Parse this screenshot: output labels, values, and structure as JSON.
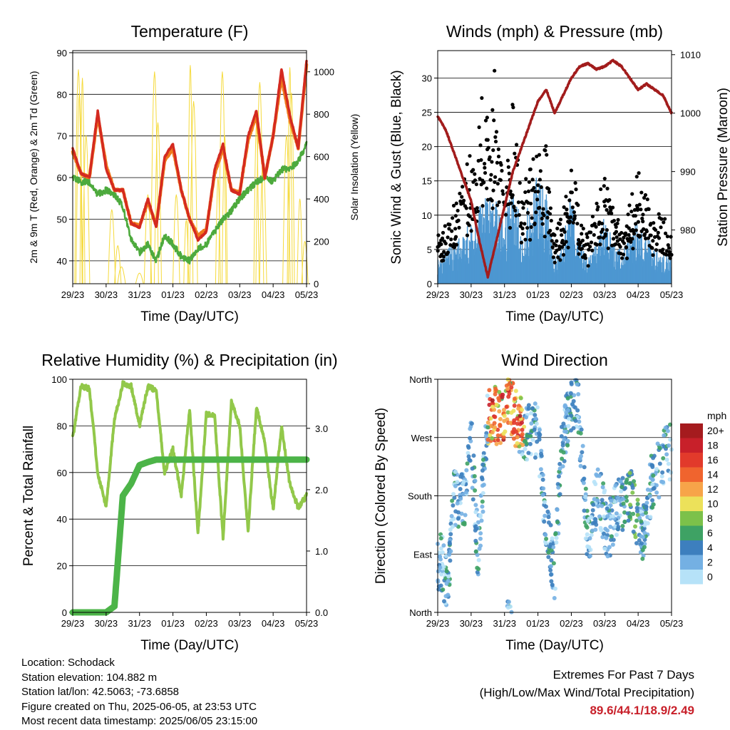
{
  "panels": {
    "temperature": {
      "title": "Temperature (F)",
      "ylabel_left": "2m & 9m T (Red, Orange) & 2m Td (Green)",
      "ylabel_right": "Solar Insolation (Yellow)",
      "xlabel": "Time (Day/UTC)"
    },
    "winds": {
      "title": "Winds (mph) & Pressure (mb)",
      "ylabel_left": "Sonic Wind & Gust (Blue, Black)",
      "ylabel_right": "Station Pressure (Maroon)",
      "xlabel": "Time (Day/UTC)"
    },
    "humidity": {
      "title": "Relative Humidity (%) & Precipitation (in)",
      "ylabel_left": "Percent & Total Rainfall",
      "xlabel": "Time (Day/UTC)"
    },
    "direction": {
      "title": "Wind Direction",
      "ylabel_left": "Direction (Colored By Speed)",
      "xlabel": "Time (Day/UTC)"
    }
  },
  "x_ticks": [
    "29/23",
    "30/23",
    "31/23",
    "01/23",
    "02/23",
    "03/23",
    "04/23",
    "05/23"
  ],
  "colorbar": {
    "unit": "mph",
    "labels": [
      "20+",
      "18",
      "16",
      "14",
      "12",
      "10",
      "8",
      "6",
      "4",
      "2",
      "0"
    ],
    "colors": [
      "#a51b1e",
      "#c8202a",
      "#e23a2b",
      "#f0642e",
      "#f7a449",
      "#ece15a",
      "#7cc14a",
      "#3ea264",
      "#3d7fbe",
      "#74b0e3",
      "#b6e2f8"
    ]
  },
  "info": {
    "location": "Location: Schodack",
    "elevation": "Station elevation: 104.882 m",
    "latlon": "Station lat/lon: 42.5063; -73.6858",
    "created": "Figure created on Thu, 2025-06-05, at 23:53 UTC",
    "recent": "Most recent data timestamp: 2025/06/05 23:15:00"
  },
  "extremes": {
    "title": "Extremes For Past 7 Days",
    "subtitle": "(High/Low/Max Wind/Total Precipitation)",
    "values": "89.6/44.1/18.9/2.49"
  },
  "chart_data": [
    {
      "type": "line",
      "title": "Temperature (F)",
      "xlabel": "Time (Day/UTC)",
      "ylabel": "2m & 9m T (Red, Orange) & 2m Td (Green)",
      "y2label": "Solar Insolation (Yellow)",
      "x_tick_labels": [
        "29/23",
        "30/23",
        "31/23",
        "01/23",
        "02/23",
        "03/23",
        "04/23",
        "05/23"
      ],
      "ylim": [
        34.5,
        90.5
      ],
      "y_ticks": [
        40,
        50,
        60,
        70,
        80,
        90
      ],
      "y2lim": [
        0,
        1100
      ],
      "y2_ticks": [
        0,
        200,
        400,
        600,
        800,
        1000
      ],
      "x": [
        0,
        0.25,
        0.5,
        0.75,
        1.0,
        1.25,
        1.5,
        1.75,
        2.0,
        2.25,
        2.5,
        2.75,
        3.0,
        3.25,
        3.5,
        3.75,
        4.0,
        4.25,
        4.5,
        4.75,
        5.0,
        5.25,
        5.5,
        5.75,
        6.0,
        6.25,
        6.5,
        6.75,
        7.0
      ],
      "series": [
        {
          "name": "2m T (Red)",
          "color": "#d42a20",
          "values": [
            67,
            61,
            60,
            76,
            62,
            57,
            57,
            49,
            48,
            55,
            48,
            65,
            68,
            57,
            50,
            45,
            47,
            62,
            68,
            57,
            56,
            70,
            76,
            60,
            70,
            86,
            75,
            67,
            88
          ]
        },
        {
          "name": "9m T (Orange)",
          "color": "#f07a1c",
          "values": [
            66,
            61,
            60,
            75,
            63,
            57,
            57,
            49,
            48.5,
            54,
            48.5,
            64,
            67,
            57,
            50,
            46,
            47.5,
            61,
            67,
            57,
            56.5,
            69,
            75,
            60,
            70,
            84,
            74,
            67,
            87
          ]
        },
        {
          "name": "2m Td (Green)",
          "color": "#4daa3d",
          "values": [
            60,
            59,
            59,
            56,
            57,
            56,
            53,
            45,
            42,
            44,
            40,
            46,
            44,
            41,
            40,
            43,
            44,
            47,
            50,
            52,
            55,
            57,
            59,
            60,
            59,
            62,
            62,
            64,
            68
          ]
        },
        {
          "name": "Solar Insolation (Yellow)",
          "color": "#f5da3c",
          "axis": "right",
          "values": [
            0,
            0,
            1020,
            0,
            0,
            350,
            50,
            0,
            0,
            0,
            900,
            0,
            0,
            0,
            1000,
            0,
            0,
            0,
            1000,
            0,
            0,
            0,
            950,
            0,
            0,
            0,
            1020,
            0,
            0
          ]
        }
      ]
    },
    {
      "type": "scatter",
      "title": "Winds (mph) & Pressure (mb)",
      "xlabel": "Time (Day/UTC)",
      "ylabel": "Sonic Wind & Gust (Blue, Black)",
      "y2label": "Station Pressure (Maroon)",
      "x_tick_labels": [
        "29/23",
        "30/23",
        "31/23",
        "01/23",
        "02/23",
        "03/23",
        "04/23",
        "05/23"
      ],
      "ylim": [
        0,
        34
      ],
      "y_ticks": [
        0,
        5,
        10,
        15,
        20,
        25,
        30
      ],
      "y2lim": [
        970.8,
        1010.7
      ],
      "y2_ticks": [
        980,
        990,
        1000,
        1010
      ],
      "x": [
        0,
        0.25,
        0.5,
        0.75,
        1.0,
        1.25,
        1.5,
        1.75,
        2.0,
        2.25,
        2.5,
        2.75,
        3.0,
        3.25,
        3.5,
        3.75,
        4.0,
        4.25,
        4.5,
        4.75,
        5.0,
        5.25,
        5.5,
        5.75,
        6.0,
        6.25,
        6.5,
        6.75,
        7.0
      ],
      "series": [
        {
          "name": "Sonic Wind (Blue)",
          "color": "#4d97d1",
          "values": [
            3,
            4,
            5,
            6,
            8,
            9,
            12,
            10,
            8,
            12,
            7,
            10,
            13,
            11,
            3,
            5,
            11,
            6,
            3,
            5,
            8,
            5,
            4,
            6,
            8,
            6,
            4,
            4,
            3
          ]
        },
        {
          "name": "Gust (Black)",
          "color": "#000000",
          "values": [
            6,
            8,
            10,
            12,
            17,
            21,
            30,
            25,
            13,
            24,
            11,
            15,
            16,
            17,
            6,
            9,
            16,
            10,
            6,
            10,
            14,
            10,
            7,
            10,
            14,
            11,
            8,
            9,
            6
          ]
        },
        {
          "name": "Station Pressure (Maroon)",
          "color": "#a21c1c",
          "axis": "right",
          "values": [
            999.5,
            997,
            993,
            989,
            985,
            978,
            972,
            978,
            984,
            990,
            994,
            998,
            1002,
            1004,
            1000,
            1003,
            1006,
            1008,
            1008.5,
            1007.5,
            1008,
            1009,
            1008,
            1006,
            1004,
            1005,
            1004,
            1003,
            1000
          ]
        }
      ]
    },
    {
      "type": "line",
      "title": "Relative Humidity (%) & Precipitation (in)",
      "xlabel": "Time (Day/UTC)",
      "ylabel": "Percent & Total Rainfall",
      "x_tick_labels": [
        "29/23",
        "30/23",
        "31/23",
        "01/23",
        "02/23",
        "03/23",
        "04/23",
        "05/23"
      ],
      "ylim": [
        0,
        100
      ],
      "y_ticks": [
        0,
        20,
        40,
        60,
        80,
        100
      ],
      "y2lim": [
        0,
        3.8
      ],
      "y2_ticks": [
        0.0,
        1.0,
        2.0,
        3.0
      ],
      "x": [
        0,
        0.25,
        0.5,
        0.75,
        1.0,
        1.25,
        1.5,
        1.75,
        2.0,
        2.25,
        2.5,
        2.75,
        3.0,
        3.25,
        3.5,
        3.75,
        4.0,
        4.25,
        4.5,
        4.75,
        5.0,
        5.25,
        5.5,
        5.75,
        6.0,
        6.25,
        6.5,
        6.75,
        7.0
      ],
      "series": [
        {
          "name": "Relative Humidity",
          "color": "#92c84a",
          "values": [
            75,
            97,
            96,
            60,
            45,
            83,
            98,
            97,
            80,
            97,
            95,
            60,
            70,
            50,
            87,
            34,
            85,
            84,
            32,
            90,
            80,
            35,
            88,
            73,
            44,
            80,
            55,
            45,
            50
          ]
        },
        {
          "name": "Total Precipitation",
          "color": "#4cb448",
          "axis": "right",
          "values": [
            0,
            0,
            0,
            0,
            0,
            0.1,
            1.9,
            2.1,
            2.4,
            2.45,
            2.49,
            2.49,
            2.49,
            2.49,
            2.49,
            2.49,
            2.49,
            2.49,
            2.49,
            2.49,
            2.49,
            2.49,
            2.49,
            2.49,
            2.49,
            2.49,
            2.49,
            2.49,
            2.49
          ]
        }
      ]
    },
    {
      "type": "scatter",
      "title": "Wind Direction",
      "xlabel": "Time (Day/UTC)",
      "ylabel": "Direction (Colored By Speed)",
      "x_tick_labels": [
        "29/23",
        "30/23",
        "31/23",
        "01/23",
        "02/23",
        "03/23",
        "04/23",
        "05/23"
      ],
      "y_tick_labels": [
        "North",
        "West",
        "South",
        "East",
        "North"
      ],
      "ylim": [
        0,
        360
      ],
      "colorbar": {
        "label": "mph",
        "levels": [
          0,
          2,
          4,
          6,
          8,
          10,
          12,
          14,
          16,
          18,
          20
        ]
      },
      "x": [
        0.1,
        0.3,
        0.5,
        0.8,
        1.0,
        1.2,
        1.5,
        1.7,
        1.9,
        2.1,
        2.3,
        2.6,
        2.8,
        3.0,
        3.2,
        3.5,
        3.7,
        3.9,
        4.2,
        4.5,
        4.8,
        5.1,
        5.3,
        5.6,
        5.8,
        6.1,
        6.4,
        6.7,
        6.9
      ],
      "values": [
        80,
        40,
        180,
        170,
        270,
        90,
        300,
        310,
        290,
        340,
        300,
        280,
        275,
        280,
        150,
        60,
        250,
        305,
        320,
        110,
        190,
        120,
        155,
        170,
        180,
        110,
        200,
        230,
        250
      ]
    }
  ]
}
